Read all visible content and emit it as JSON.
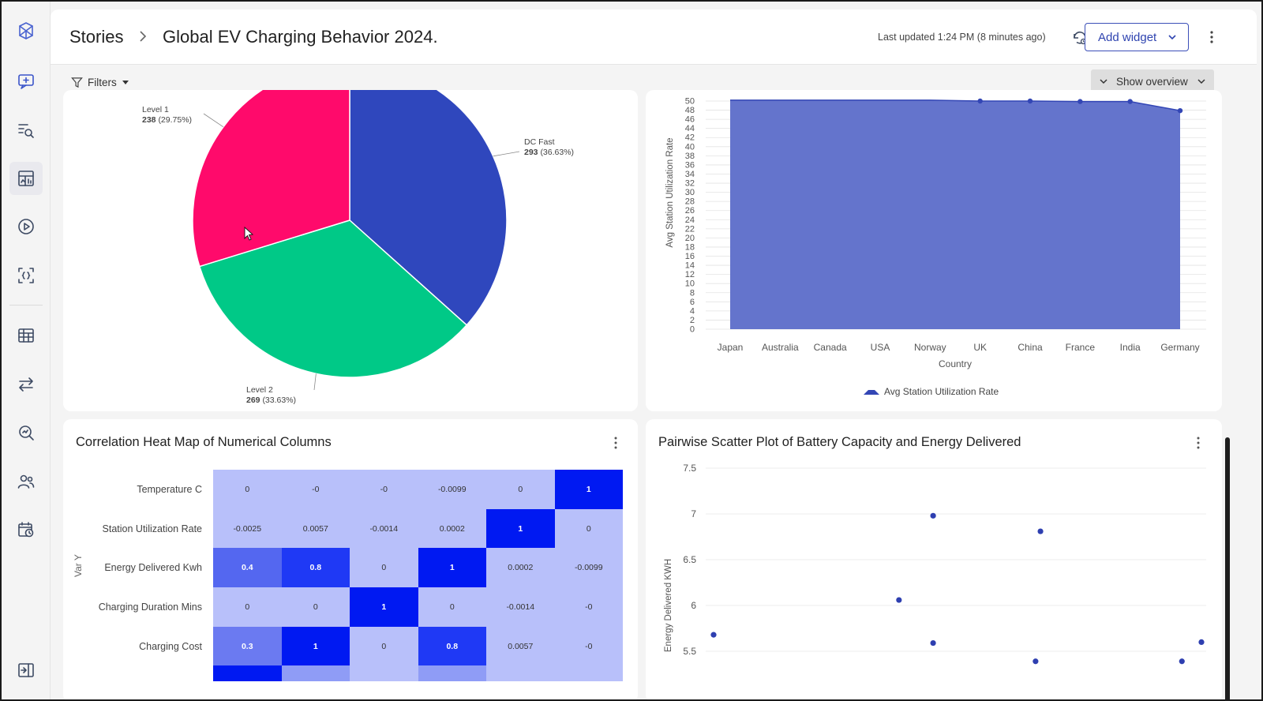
{
  "header": {
    "breadcrumb_root": "Stories",
    "title": "Global EV Charging Behavior 2024.",
    "last_updated": "Last updated 1:24 PM (8 minutes ago)",
    "add_widget_label": "Add widget"
  },
  "filterbar": {
    "filters_label": "Filters",
    "show_overview_label": "Show overview"
  },
  "sidebar": {
    "items": [
      {
        "icon": "chat-add-icon"
      },
      {
        "icon": "search-list-icon"
      },
      {
        "icon": "dashboard-icon",
        "active": true
      },
      {
        "icon": "play-icon"
      },
      {
        "icon": "variables-icon"
      },
      {
        "icon": "table-icon"
      },
      {
        "icon": "transfer-icon"
      },
      {
        "icon": "data-search-icon"
      },
      {
        "icon": "users-icon"
      },
      {
        "icon": "schedule-icon"
      },
      {
        "icon": "collapse-sidebar-icon"
      }
    ]
  },
  "colors": {
    "pie_level1": "#ff0a6b",
    "pie_dcfast": "#2f47bd",
    "pie_level2": "#00c987",
    "area_fill": "#6474cc",
    "area_line": "#3346b5",
    "scatter": "#2e3fb0",
    "accent": "#2f44b0"
  },
  "chart_data": [
    {
      "type": "pie",
      "title": "",
      "slices": [
        {
          "label": "DC Fast",
          "value": 293,
          "percent": "36.63%",
          "value_label": "293",
          "percent_label": "(36.63%)"
        },
        {
          "label": "Level 2",
          "value": 269,
          "percent": "33.63%",
          "value_label": "269",
          "percent_label": "(33.63%)"
        },
        {
          "label": "Level 1",
          "value": 238,
          "percent": "29.75%",
          "value_label": "238",
          "percent_label": "(29.75%)"
        }
      ]
    },
    {
      "type": "area",
      "title": "",
      "xlabel": "Country",
      "ylabel": "Avg Station Utilization Rate",
      "legend": "Avg Station Utilization Rate",
      "categories": [
        "Japan",
        "Australia",
        "Canada",
        "USA",
        "Norway",
        "UK",
        "China",
        "France",
        "India",
        "Germany"
      ],
      "values": [
        50.2,
        50.2,
        50.2,
        50.2,
        50.2,
        50.0,
        50.0,
        49.9,
        49.9,
        47.9
      ],
      "yticks": [
        0,
        2,
        4,
        6,
        8,
        10,
        12,
        14,
        16,
        18,
        20,
        22,
        24,
        26,
        28,
        30,
        32,
        34,
        36,
        38,
        40,
        42,
        44,
        46,
        48,
        50
      ],
      "ylim": [
        0,
        50
      ]
    },
    {
      "type": "heatmap",
      "title": "Correlation Heat Map of Numerical Columns",
      "ylabel": "Var Y",
      "rows": [
        {
          "label": "Temperature C",
          "values": [
            "0",
            "-0",
            "-0",
            "-0.0099",
            "0",
            "1"
          ]
        },
        {
          "label": "Station Utilization Rate",
          "values": [
            "-0.0025",
            "0.0057",
            "-0.0014",
            "0.0002",
            "1",
            "0"
          ]
        },
        {
          "label": "Energy Delivered Kwh",
          "values": [
            "0.4",
            "0.8",
            "0",
            "1",
            "0.0002",
            "-0.0099"
          ]
        },
        {
          "label": "Charging Duration Mins",
          "values": [
            "0",
            "0",
            "1",
            "0",
            "-0.0014",
            "-0"
          ]
        },
        {
          "label": "Charging Cost",
          "values": [
            "0.3",
            "1",
            "0",
            "0.8",
            "0.0057",
            "-0"
          ]
        }
      ]
    },
    {
      "type": "scatter",
      "title": "Pairwise Scatter Plot of Battery Capacity and Energy Delivered",
      "ylabel": "Energy Delivered KWH",
      "yticks": [
        "5.5",
        "6",
        "6.5",
        "7",
        "7.5"
      ],
      "ylim": [
        5.2,
        7.5
      ],
      "points": [
        {
          "x": 0.0,
          "y": 5.68
        },
        {
          "x": 0.38,
          "y": 6.06
        },
        {
          "x": 0.45,
          "y": 6.98
        },
        {
          "x": 0.45,
          "y": 5.59
        },
        {
          "x": 0.66,
          "y": 5.39
        },
        {
          "x": 0.67,
          "y": 6.81
        },
        {
          "x": 0.96,
          "y": 5.39
        },
        {
          "x": 1.0,
          "y": 5.6
        }
      ]
    }
  ]
}
